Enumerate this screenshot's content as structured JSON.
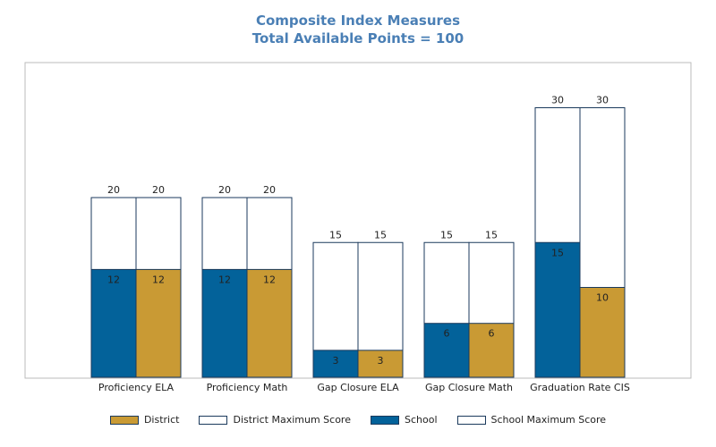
{
  "chart_data": {
    "type": "bar",
    "title": "Composite Index Measures",
    "subtitle": "Total Available Points = 100",
    "categories": [
      "Proficiency ELA",
      "Proficiency Math",
      "Gap Closure ELA",
      "Gap Closure Math",
      "Graduation Rate CIS"
    ],
    "series": [
      {
        "name": "School",
        "values": [
          12,
          12,
          3,
          6,
          15
        ],
        "max_values": [
          20,
          20,
          15,
          15,
          30
        ]
      },
      {
        "name": "District",
        "values": [
          12,
          12,
          3,
          6,
          10
        ],
        "max_values": [
          20,
          20,
          15,
          15,
          30
        ]
      }
    ],
    "ylim": [
      0,
      35
    ],
    "grid": false,
    "legend_position": "bottom",
    "legend": [
      {
        "label": "District",
        "color": "#c99a34"
      },
      {
        "label": "District Maximum Score",
        "color": "#ffffff"
      },
      {
        "label": "School",
        "color": "#03629a"
      },
      {
        "label": "School Maximum Score",
        "color": "#ffffff"
      }
    ],
    "colors": {
      "school": "#03629a",
      "district": "#c99a34",
      "outline": "#1b3a5c",
      "title": "#4a7fb5"
    }
  }
}
